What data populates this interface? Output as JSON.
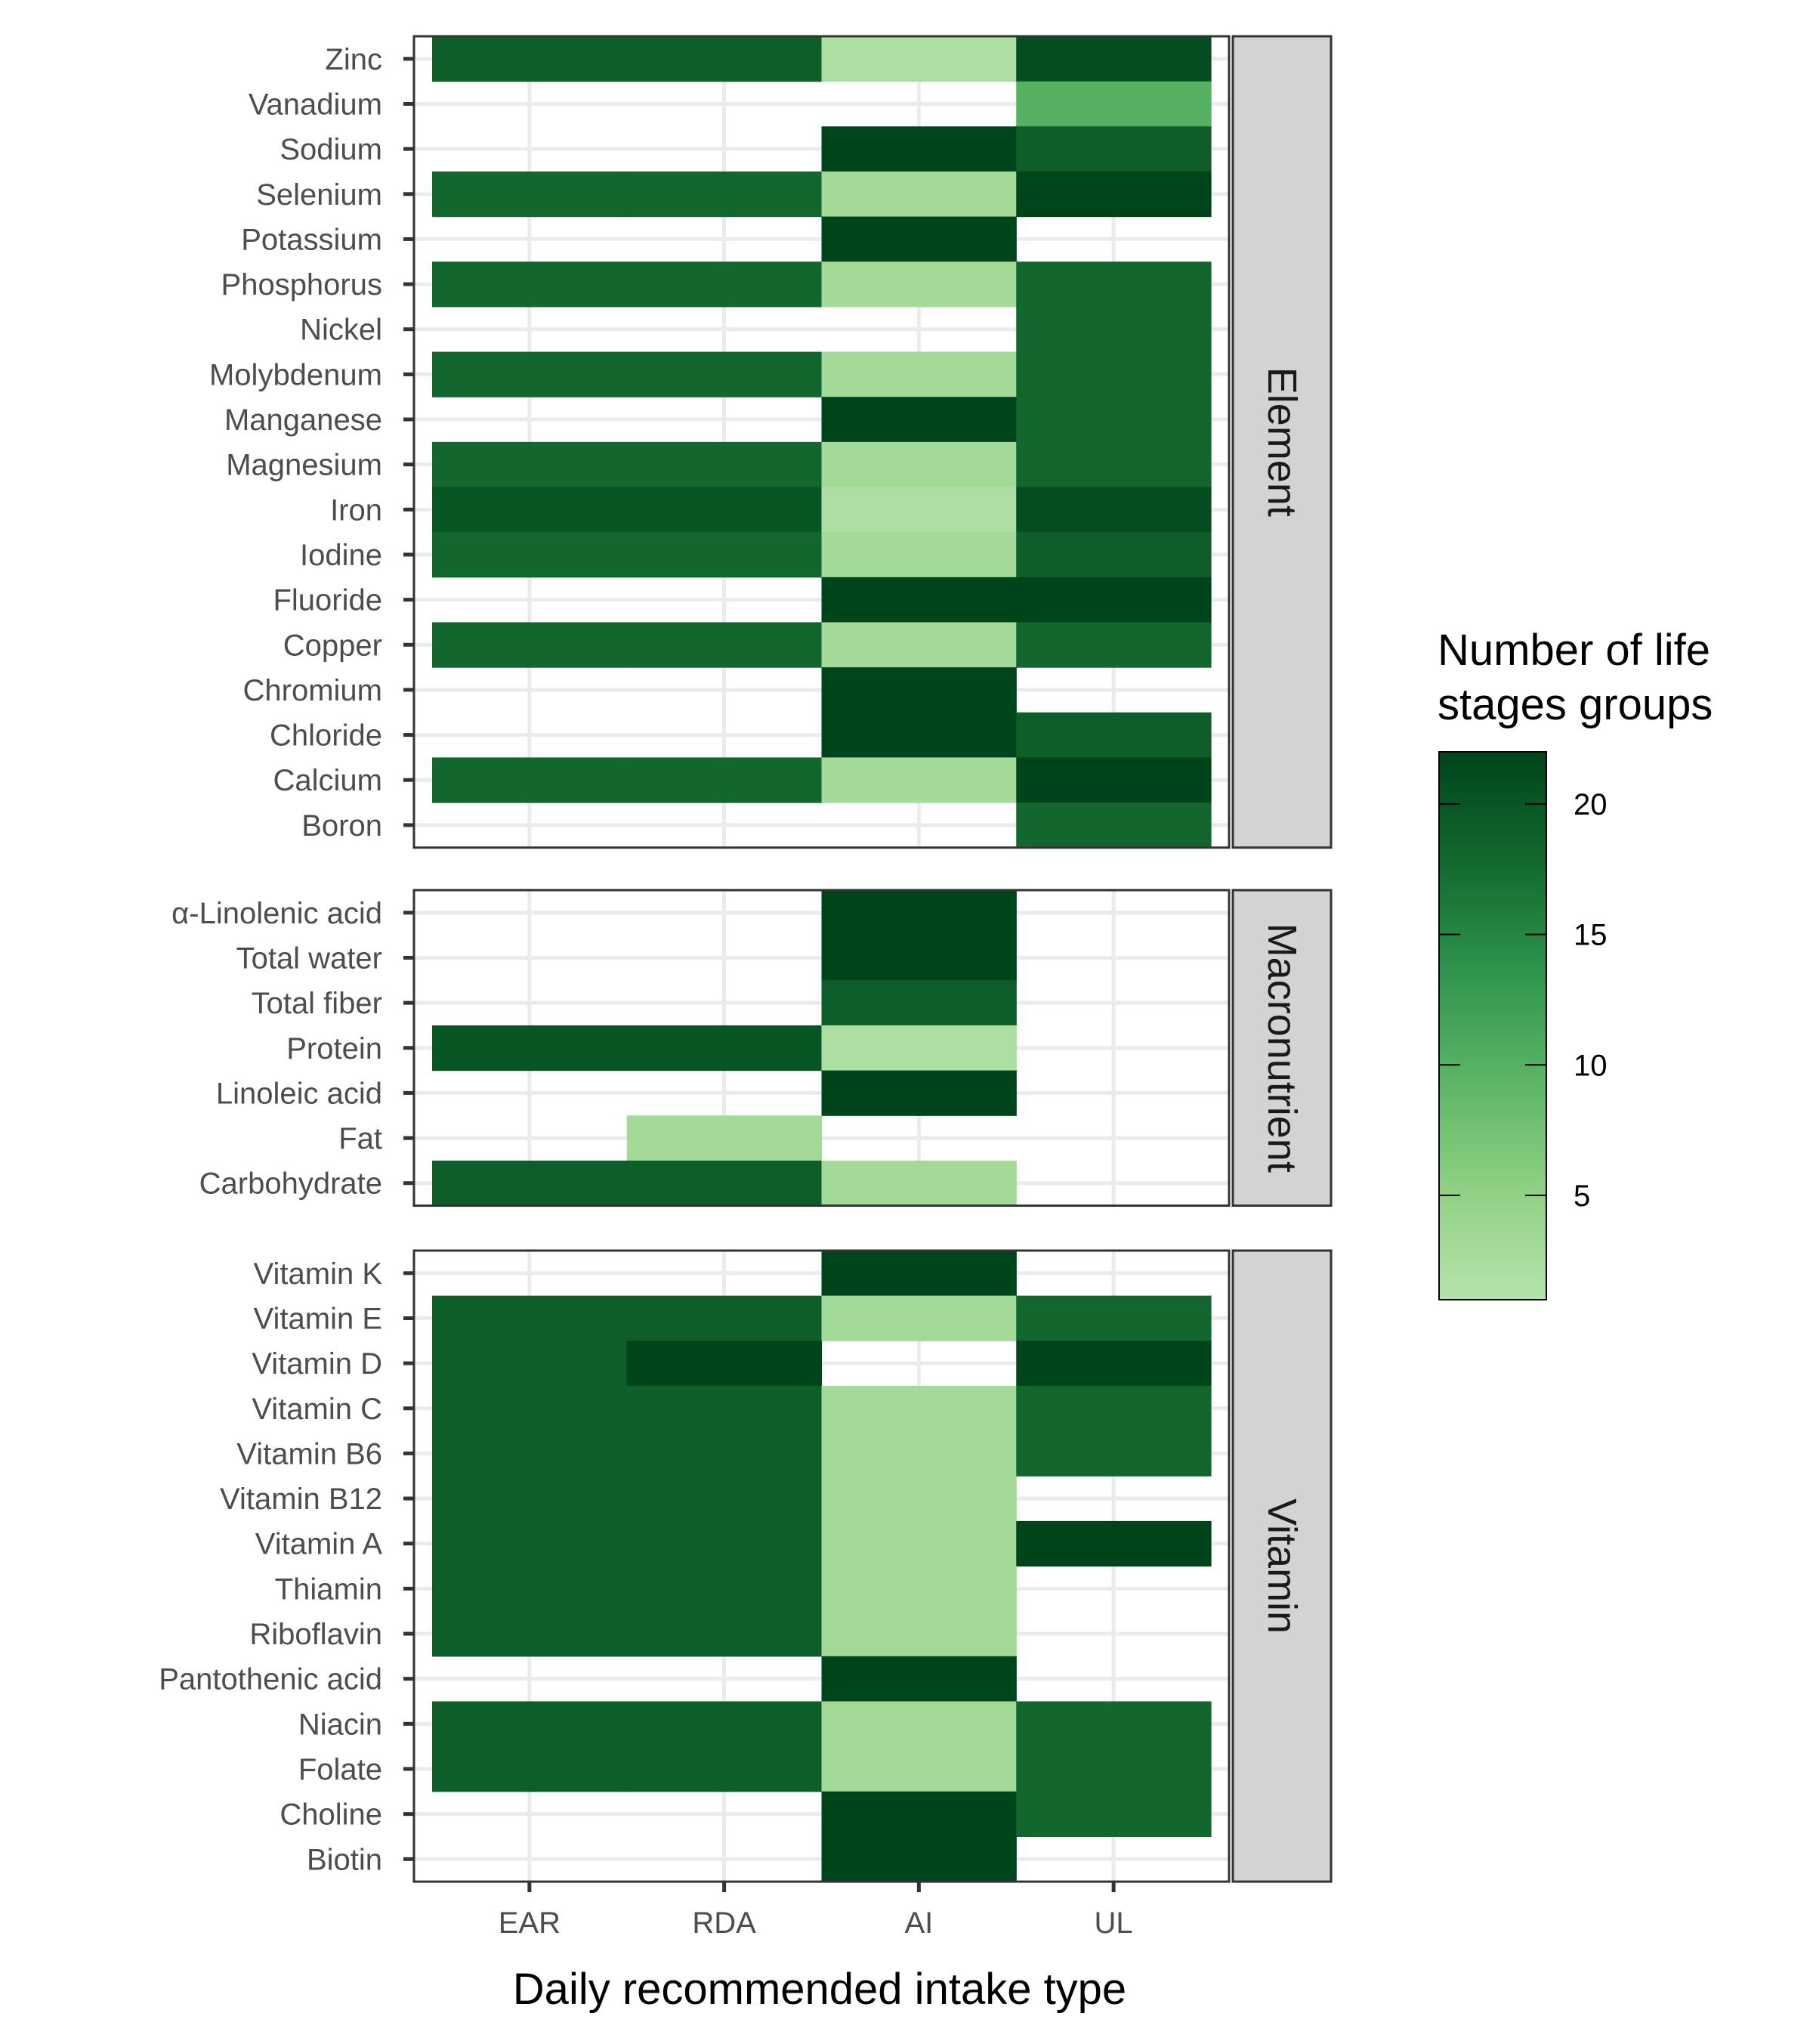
{
  "chart_data": {
    "type": "heatmap",
    "xlabel": "Daily recommended intake type",
    "x_categories": [
      "EAR",
      "RDA",
      "AI",
      "UL"
    ],
    "colorbar": {
      "title_lines": [
        "Number of life",
        "stages groups"
      ],
      "ticks": [
        5,
        10,
        15,
        20
      ],
      "range": [
        1,
        22
      ],
      "low_color": "#b5e3aa",
      "high_color": "#00441b"
    },
    "panels": [
      {
        "facet": "Element",
        "rows": [
          {
            "label": "Zinc",
            "values": {
              "EAR": 19,
              "RDA": 19,
              "AI": 2,
              "UL": 21
            }
          },
          {
            "label": "Vanadium",
            "values": {
              "UL": 10
            }
          },
          {
            "label": "Sodium",
            "values": {
              "AI": 22,
              "UL": 19
            }
          },
          {
            "label": "Selenium",
            "values": {
              "EAR": 18,
              "RDA": 18,
              "AI": 3,
              "UL": 22
            }
          },
          {
            "label": "Potassium",
            "values": {
              "AI": 22
            }
          },
          {
            "label": "Phosphorus",
            "values": {
              "EAR": 18,
              "RDA": 18,
              "AI": 3,
              "UL": 18
            }
          },
          {
            "label": "Nickel",
            "values": {
              "UL": 18
            }
          },
          {
            "label": "Molybdenum",
            "values": {
              "EAR": 18,
              "RDA": 18,
              "AI": 3,
              "UL": 18
            }
          },
          {
            "label": "Manganese",
            "values": {
              "AI": 22,
              "UL": 18
            }
          },
          {
            "label": "Magnesium",
            "values": {
              "EAR": 18,
              "RDA": 18,
              "AI": 3,
              "UL": 18
            }
          },
          {
            "label": "Iron",
            "values": {
              "EAR": 20,
              "RDA": 20,
              "AI": 2,
              "UL": 21
            }
          },
          {
            "label": "Iodine",
            "values": {
              "EAR": 18,
              "RDA": 18,
              "AI": 3,
              "UL": 19
            }
          },
          {
            "label": "Fluoride",
            "values": {
              "AI": 22,
              "UL": 22
            }
          },
          {
            "label": "Copper",
            "values": {
              "EAR": 18,
              "RDA": 18,
              "AI": 3,
              "UL": 18
            }
          },
          {
            "label": "Chromium",
            "values": {
              "AI": 22
            }
          },
          {
            "label": "Chloride",
            "values": {
              "AI": 22,
              "UL": 19
            }
          },
          {
            "label": "Calcium",
            "values": {
              "EAR": 18,
              "RDA": 18,
              "AI": 3,
              "UL": 22
            }
          },
          {
            "label": "Boron",
            "values": {
              "UL": 18
            }
          }
        ]
      },
      {
        "facet": "Macronutrient",
        "rows": [
          {
            "label": "α-Linolenic acid",
            "values": {
              "AI": 22
            }
          },
          {
            "label": "Total water",
            "values": {
              "AI": 22
            }
          },
          {
            "label": "Total fiber",
            "values": {
              "AI": 19
            }
          },
          {
            "label": "Protein",
            "values": {
              "EAR": 20,
              "RDA": 20,
              "AI": 2
            }
          },
          {
            "label": "Linoleic acid",
            "values": {
              "AI": 22
            }
          },
          {
            "label": "Fat",
            "values": {
              "RDA": 3
            }
          },
          {
            "label": "Carbohydrate",
            "values": {
              "EAR": 19,
              "RDA": 19,
              "AI": 3
            }
          }
        ]
      },
      {
        "facet": "Vitamin",
        "rows": [
          {
            "label": "Vitamin K",
            "values": {
              "AI": 22
            }
          },
          {
            "label": "Vitamin E",
            "values": {
              "EAR": 19,
              "RDA": 19,
              "AI": 3,
              "UL": 18
            }
          },
          {
            "label": "Vitamin D",
            "values": {
              "EAR": 19,
              "RDA": 22,
              "UL": 22
            }
          },
          {
            "label": "Vitamin C",
            "values": {
              "EAR": 19,
              "RDA": 19,
              "AI": 3,
              "UL": 18
            }
          },
          {
            "label": "Vitamin B6",
            "values": {
              "EAR": 19,
              "RDA": 19,
              "AI": 3,
              "UL": 18
            }
          },
          {
            "label": "Vitamin B12",
            "values": {
              "EAR": 19,
              "RDA": 19,
              "AI": 3
            }
          },
          {
            "label": "Vitamin A",
            "values": {
              "EAR": 19,
              "RDA": 19,
              "AI": 3,
              "UL": 22
            }
          },
          {
            "label": "Thiamin",
            "values": {
              "EAR": 19,
              "RDA": 19,
              "AI": 3
            }
          },
          {
            "label": "Riboflavin",
            "values": {
              "EAR": 19,
              "RDA": 19,
              "AI": 3
            }
          },
          {
            "label": "Pantothenic acid",
            "values": {
              "AI": 22
            }
          },
          {
            "label": "Niacin",
            "values": {
              "EAR": 19,
              "RDA": 19,
              "AI": 3,
              "UL": 18
            }
          },
          {
            "label": "Folate",
            "values": {
              "EAR": 19,
              "RDA": 19,
              "AI": 3,
              "UL": 18
            }
          },
          {
            "label": "Choline",
            "values": {
              "AI": 22,
              "UL": 18
            }
          },
          {
            "label": "Biotin",
            "values": {
              "AI": 22
            }
          }
        ]
      }
    ]
  }
}
